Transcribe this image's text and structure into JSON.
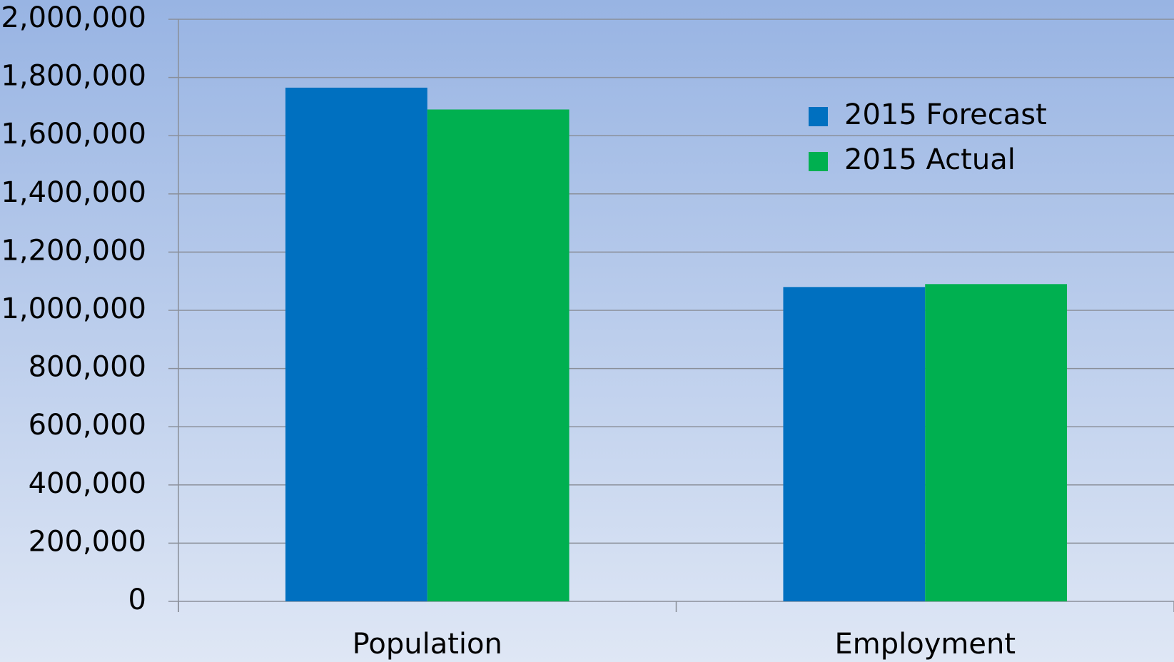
{
  "chart_data": {
    "type": "bar",
    "categories": [
      "Population",
      "Employment"
    ],
    "series": [
      {
        "name": "2015 Forecast",
        "color": "#0070c0",
        "values": [
          1765000,
          1080000
        ]
      },
      {
        "name": "2015 Actual",
        "color": "#00b050",
        "values": [
          1690000,
          1090000
        ]
      }
    ],
    "ylim": [
      0,
      2000000
    ],
    "yticks": [
      0,
      {
        "value": 200000,
        "label": "200,000"
      },
      {
        "value": 400000,
        "label": "400,000"
      },
      {
        "value": 600000,
        "label": "600,000"
      },
      {
        "value": 800000,
        "label": "800,000"
      },
      {
        "value": 1000000,
        "label": "1,000,000"
      },
      {
        "value": 1200000,
        "label": "1,200,000"
      },
      {
        "value": 1400000,
        "label": "1,400,000"
      },
      {
        "value": 1600000,
        "label": "1,600,000"
      },
      {
        "value": 1800000,
        "label": "1,800,000"
      },
      {
        "value": 2000000,
        "label": "2,000,000"
      }
    ],
    "grid": true,
    "legend": "upper right"
  }
}
